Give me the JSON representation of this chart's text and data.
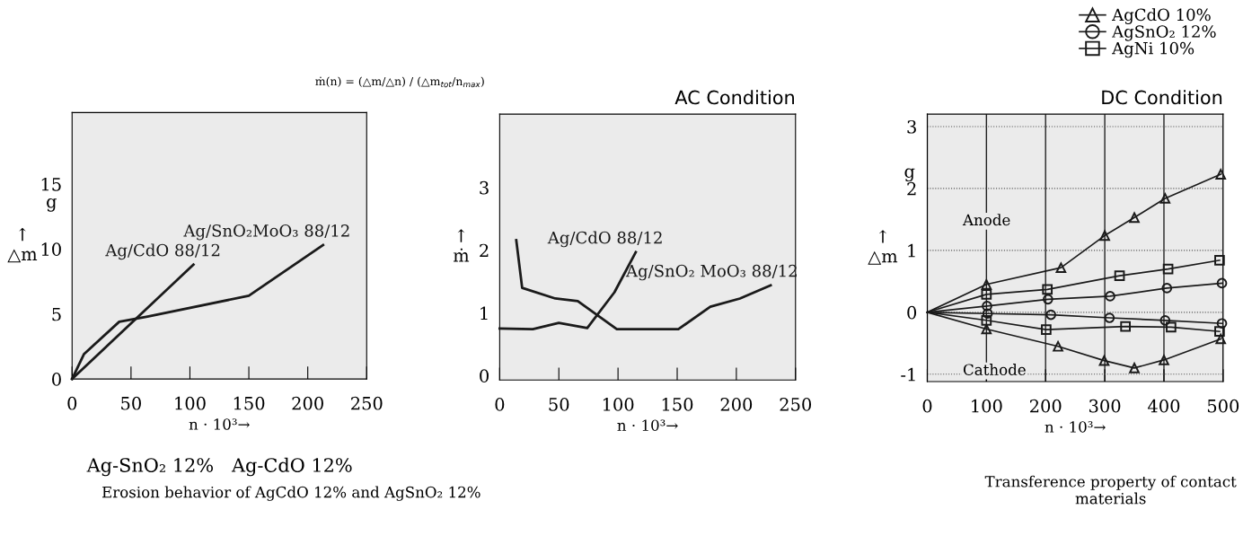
{
  "chart_data": [
    {
      "type": "line",
      "xlabel": "n · 10³→",
      "ylabel": "↑\n△m",
      "xlim": [
        0,
        250
      ],
      "ylim": [
        0,
        20.5
      ],
      "xticks": [
        0,
        50,
        100,
        150,
        200,
        250
      ],
      "yticks": [
        0,
        5,
        10,
        15
      ],
      "annotations": [
        "g",
        "Ag-SnO₂ 12%   Ag-CdO 12%",
        "Erosion behavior of AgCdO 12% and AgSnO₂ 12%"
      ],
      "series": [
        {
          "name": "Ag/CdO 88/12",
          "color": "#1a1a1a",
          "x": [
            0,
            103
          ],
          "values": [
            0,
            8.8
          ]
        },
        {
          "name": "Ag/SnO₂MoO₃ 88/12",
          "color": "#1a1a1a",
          "x": [
            0,
            10,
            40,
            64,
            150,
            213
          ],
          "values": [
            0,
            1.9,
            4.4,
            4.8,
            6.4,
            10.3
          ]
        }
      ]
    },
    {
      "type": "line",
      "title": "AC Condition",
      "xlabel": "n · 10³→",
      "ylabel": "↑\nṁ",
      "xlim": [
        0,
        250
      ],
      "ylim": [
        -0.07,
        4.17
      ],
      "xticks": [
        0,
        50,
        100,
        150,
        200,
        250
      ],
      "yticks": [
        0,
        1,
        2,
        3
      ],
      "annotations": [
        "ṁ(n) = (△m/△n) / (△m$_{tot}$/n$_{max}$)"
      ],
      "series": [
        {
          "name": "Ag/CdO 88/12",
          "color": "#1a1a1a",
          "x": [
            0,
            28,
            50,
            74,
            97,
            115
          ],
          "values": [
            0.75,
            0.74,
            0.84,
            0.76,
            1.33,
            1.97
          ]
        },
        {
          "name": "Ag/SnO₂ MoO₃ 88/12",
          "color": "#1a1a1a",
          "x": [
            14,
            19,
            47,
            66,
            99,
            151,
            178,
            203,
            229
          ],
          "values": [
            2.16,
            1.4,
            1.23,
            1.19,
            0.74,
            0.74,
            1.1,
            1.23,
            1.44
          ]
        }
      ]
    },
    {
      "type": "line",
      "title": "DC Condition",
      "xlabel": "n · 10³→",
      "ylabel": "↑\n△m",
      "xlim": [
        0,
        500
      ],
      "ylim": [
        -1.12,
        3.2
      ],
      "xticks": [
        0,
        100,
        200,
        300,
        400,
        500
      ],
      "yticks": [
        -1,
        0,
        1,
        2,
        3
      ],
      "grid": true,
      "legend": "top right",
      "annotations": [
        "g",
        "Anode",
        "Cathode",
        "Transference property of contact materials"
      ],
      "series": [
        {
          "name": "AgCdO 10%",
          "color": "#1a1a1a",
          "marker": "triangle",
          "x": [
            0,
            100,
            226,
            300,
            350,
            402,
            496
          ],
          "values": [
            0,
            0.45,
            0.72,
            1.24,
            1.53,
            1.84,
            2.23
          ]
        },
        {
          "name": "AgSnO₂ 12%",
          "color": "#1a1a1a",
          "marker": "circle",
          "x": [
            0,
            101,
            204,
            309,
            405,
            498
          ],
          "values": [
            0,
            0.1,
            0.21,
            0.26,
            0.39,
            0.47
          ]
        },
        {
          "name": "AgNi 10%",
          "color": "#1a1a1a",
          "marker": "square",
          "x": [
            0,
            100,
            203,
            325,
            407,
            494
          ],
          "values": [
            0,
            0.29,
            0.37,
            0.59,
            0.7,
            0.84
          ]
        },
        {
          "color": "#1a1a1a",
          "marker": "circle",
          "x": [
            0,
            102,
            209,
            308,
            402,
            498
          ],
          "values": [
            0,
            -0.02,
            -0.04,
            -0.09,
            -0.13,
            -0.18
          ]
        },
        {
          "color": "#1a1a1a",
          "marker": "square",
          "x": [
            0,
            100,
            201,
            335,
            412,
            494
          ],
          "values": [
            0,
            -0.13,
            -0.28,
            -0.23,
            -0.24,
            -0.31
          ]
        },
        {
          "color": "#1a1a1a",
          "marker": "triangle",
          "x": [
            0,
            100,
            221,
            299,
            350,
            400,
            496
          ],
          "values": [
            0,
            -0.27,
            -0.55,
            -0.78,
            -0.9,
            -0.77,
            -0.43
          ]
        }
      ]
    }
  ]
}
